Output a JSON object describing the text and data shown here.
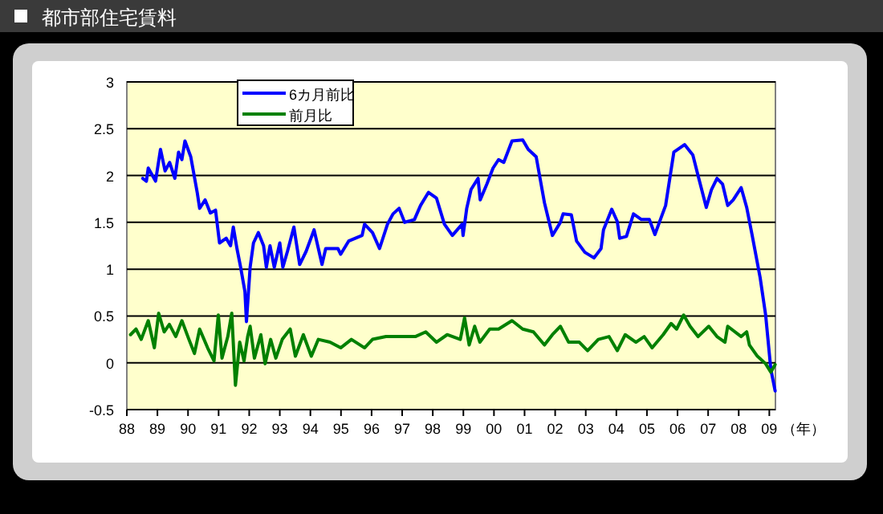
{
  "chart_data": {
    "type": "line",
    "title": "都市部住宅賃料",
    "xlabel": "（年）",
    "legend": "top left",
    "grid": "y",
    "marker": "none",
    "line_style": "solid",
    "xlim": [
      1988,
      2009.2
    ],
    "ylim": [
      -0.5,
      3
    ],
    "yticks": [
      -0.5,
      0,
      0.5,
      1,
      1.5,
      2,
      2.5,
      3
    ],
    "xticks": [
      {
        "value": 1988,
        "label": "88"
      },
      {
        "value": 1989,
        "label": "89"
      },
      {
        "value": 1990,
        "label": "90"
      },
      {
        "value": 1991,
        "label": "91"
      },
      {
        "value": 1992,
        "label": "92"
      },
      {
        "value": 1993,
        "label": "93"
      },
      {
        "value": 1994,
        "label": "94"
      },
      {
        "value": 1995,
        "label": "95"
      },
      {
        "value": 1996,
        "label": "96"
      },
      {
        "value": 1997,
        "label": "97"
      },
      {
        "value": 1998,
        "label": "98"
      },
      {
        "value": 1999,
        "label": "99"
      },
      {
        "value": 2000,
        "label": "00"
      },
      {
        "value": 2001,
        "label": "01"
      },
      {
        "value": 2002,
        "label": "02"
      },
      {
        "value": 2003,
        "label": "03"
      },
      {
        "value": 2004,
        "label": "04"
      },
      {
        "value": 2005,
        "label": "05"
      },
      {
        "value": 2006,
        "label": "06"
      },
      {
        "value": 2007,
        "label": "07"
      },
      {
        "value": 2008,
        "label": "08"
      },
      {
        "value": 2009,
        "label": "09"
      }
    ],
    "series": [
      {
        "name": "6カ月前比",
        "color": "#0000ff",
        "x": [
          1988.52,
          1988.64,
          1988.7,
          1988.94,
          1989.1,
          1989.25,
          1989.4,
          1989.57,
          1989.69,
          1989.8,
          1989.9,
          1990.09,
          1990.3,
          1990.38,
          1990.56,
          1990.73,
          1990.9,
          1991.03,
          1991.25,
          1991.39,
          1991.48,
          1991.6,
          1991.72,
          1991.86,
          1991.91,
          1992.03,
          1992.14,
          1992.3,
          1992.47,
          1992.56,
          1992.68,
          1992.82,
          1993.0,
          1993.1,
          1993.25,
          1993.46,
          1993.65,
          1993.86,
          1994.12,
          1994.38,
          1994.5,
          1994.9,
          1994.99,
          1995.25,
          1995.69,
          1995.77,
          1996.03,
          1996.26,
          1996.52,
          1996.7,
          1996.9,
          1997.08,
          1997.4,
          1997.6,
          1997.86,
          1998.12,
          1998.38,
          1998.64,
          1998.96,
          1998.99,
          1999.11,
          1999.25,
          1999.48,
          1999.55,
          1999.77,
          1999.97,
          2000.15,
          2000.32,
          2000.59,
          2000.94,
          2001.12,
          2001.38,
          2001.65,
          2001.91,
          2002.17,
          2002.26,
          2002.53,
          2002.7,
          2002.97,
          2003.27,
          2003.5,
          2003.58,
          2003.85,
          2004.03,
          2004.11,
          2004.33,
          2004.56,
          2004.82,
          2005.08,
          2005.26,
          2005.44,
          2005.61,
          2005.88,
          2006.23,
          2006.5,
          2006.67,
          2006.94,
          2007.11,
          2007.29,
          2007.47,
          2007.64,
          2007.82,
          2008.08,
          2008.26,
          2008.44,
          2008.7,
          2008.88,
          2009.05,
          2009.19
        ],
        "values": [
          1.97,
          1.94,
          2.08,
          1.94,
          2.28,
          2.05,
          2.14,
          1.97,
          2.25,
          2.17,
          2.37,
          2.2,
          1.82,
          1.65,
          1.74,
          1.6,
          1.63,
          1.28,
          1.33,
          1.25,
          1.45,
          1.22,
          1.02,
          0.76,
          0.44,
          1.02,
          1.28,
          1.39,
          1.25,
          1.02,
          1.25,
          1.02,
          1.28,
          1.02,
          1.19,
          1.45,
          1.05,
          1.19,
          1.42,
          1.05,
          1.22,
          1.22,
          1.16,
          1.3,
          1.36,
          1.48,
          1.39,
          1.22,
          1.48,
          1.59,
          1.65,
          1.5,
          1.53,
          1.68,
          1.82,
          1.76,
          1.48,
          1.36,
          1.48,
          1.36,
          1.65,
          1.85,
          1.97,
          1.74,
          1.91,
          2.08,
          2.17,
          2.14,
          2.37,
          2.38,
          2.28,
          2.2,
          1.71,
          1.36,
          1.5,
          1.59,
          1.58,
          1.3,
          1.18,
          1.12,
          1.22,
          1.42,
          1.64,
          1.51,
          1.33,
          1.35,
          1.59,
          1.53,
          1.53,
          1.37,
          1.53,
          1.68,
          2.25,
          2.33,
          2.22,
          2.0,
          1.66,
          1.85,
          1.97,
          1.91,
          1.68,
          1.74,
          1.87,
          1.66,
          1.36,
          0.91,
          0.51,
          -0.07,
          -0.3
        ]
      },
      {
        "name": "前月比",
        "color": "#008000",
        "x": [
          1988.12,
          1988.3,
          1988.47,
          1988.7,
          1988.9,
          1989.04,
          1989.22,
          1989.39,
          1989.6,
          1989.8,
          1990.03,
          1990.21,
          1990.38,
          1990.64,
          1990.85,
          1990.99,
          1991.11,
          1991.3,
          1991.43,
          1991.55,
          1991.69,
          1991.83,
          1991.95,
          1992.03,
          1992.17,
          1992.38,
          1992.52,
          1992.7,
          1992.87,
          1993.08,
          1993.34,
          1993.51,
          1993.77,
          1994.03,
          1994.26,
          1994.64,
          1994.99,
          1995.34,
          1995.77,
          1996.03,
          1996.47,
          1996.99,
          1997.43,
          1997.77,
          1998.12,
          1998.47,
          1998.9,
          1999.04,
          1999.19,
          1999.37,
          1999.54,
          1999.86,
          2000.15,
          2000.59,
          2000.94,
          2001.29,
          2001.65,
          2001.91,
          2002.17,
          2002.44,
          2002.79,
          2003.06,
          2003.41,
          2003.76,
          2004.03,
          2004.29,
          2004.64,
          2004.91,
          2005.17,
          2005.53,
          2005.79,
          2005.97,
          2006.2,
          2006.41,
          2006.67,
          2007.02,
          2007.29,
          2007.55,
          2007.64,
          2008.08,
          2008.26,
          2008.35,
          2008.61,
          2008.88,
          2009.05,
          2009.19
        ],
        "values": [
          0.3,
          0.36,
          0.25,
          0.45,
          0.16,
          0.53,
          0.33,
          0.41,
          0.28,
          0.45,
          0.25,
          0.1,
          0.36,
          0.16,
          0.02,
          0.51,
          0.05,
          0.28,
          0.53,
          -0.24,
          0.22,
          0.02,
          0.28,
          0.39,
          0.05,
          0.3,
          -0.01,
          0.25,
          0.05,
          0.25,
          0.36,
          0.07,
          0.3,
          0.07,
          0.25,
          0.22,
          0.16,
          0.25,
          0.16,
          0.25,
          0.28,
          0.28,
          0.28,
          0.33,
          0.22,
          0.3,
          0.25,
          0.48,
          0.19,
          0.39,
          0.22,
          0.36,
          0.36,
          0.45,
          0.36,
          0.33,
          0.19,
          0.3,
          0.39,
          0.22,
          0.22,
          0.13,
          0.25,
          0.28,
          0.13,
          0.3,
          0.22,
          0.28,
          0.16,
          0.3,
          0.42,
          0.36,
          0.51,
          0.39,
          0.28,
          0.39,
          0.28,
          0.22,
          0.39,
          0.28,
          0.33,
          0.19,
          0.07,
          -0.01,
          -0.1,
          -0.02
        ]
      }
    ]
  }
}
